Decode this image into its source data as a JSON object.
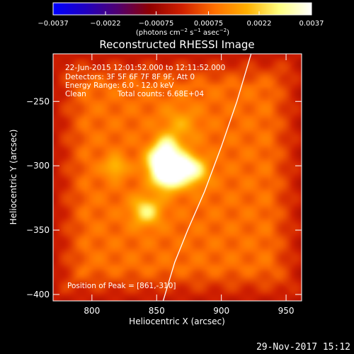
{
  "chart_data": {
    "type": "heatmap",
    "title": "Reconstructed RHESSI Image",
    "xlabel": "Heliocentric X (arcsec)",
    "ylabel": "Heliocentric Y (arcsec)",
    "xlim": [
      770,
      962
    ],
    "ylim": [
      -405,
      -213
    ],
    "x_ticks": [
      800,
      850,
      900,
      950
    ],
    "x_tick_labels": [
      "800",
      "850",
      "900",
      "950"
    ],
    "y_ticks": [
      -250,
      -300,
      -350,
      -400
    ],
    "y_tick_labels": [
      "−250",
      "−300",
      "−350",
      "−400"
    ],
    "colorbar": {
      "range": [
        -0.0037,
        0.0037
      ],
      "ticks": [
        -0.0037,
        -0.0022,
        -0.00075,
        0.00075,
        0.0022,
        0.0037
      ],
      "tick_labels": [
        "−0.0037",
        "−0.0022",
        "−0.00075",
        "0.00075",
        "0.0022",
        "0.0037"
      ],
      "label_main": "(photons cm",
      "label_sup1": "−2",
      "label_mid": " s",
      "label_sup2": "−1",
      "label_end": " asec",
      "label_sup3": "−2",
      "label_close": ")",
      "colors": [
        "#0000ff",
        "#2000c0",
        "#500070",
        "#900000",
        "#d02000",
        "#ff7000",
        "#ffb000",
        "#ffff80",
        "#ffffff"
      ]
    },
    "sources": [
      {
        "x": 859,
        "y": -307,
        "sigma": 8,
        "amp": 0.0037
      },
      {
        "x": 858,
        "y": -287,
        "sigma": 7,
        "amp": 0.0024
      },
      {
        "x": 851,
        "y": -297,
        "sigma": 7,
        "amp": 0.0022
      },
      {
        "x": 878,
        "y": -304,
        "sigma": 8,
        "amp": 0.0021
      },
      {
        "x": 870,
        "y": -298,
        "sigma": 6,
        "amp": 0.0015
      },
      {
        "x": 842,
        "y": -335,
        "sigma": 8,
        "amp": 0.0018
      },
      {
        "x": 818,
        "y": -301,
        "sigma": 6,
        "amp": 0.0012
      },
      {
        "x": 868,
        "y": -268,
        "sigma": 10,
        "amp": 0.0008
      }
    ],
    "background_level": 0.0009,
    "limb_curve": {
      "x": [
        923,
        912,
        900,
        887,
        874,
        864,
        855
      ],
      "y": [
        -213,
        -250,
        -285,
        -320,
        -350,
        -375,
        -405
      ]
    }
  },
  "info": {
    "line1": "22-Jun-2015 12:01:52.000 to 12:11:52.000",
    "line2": "Detectors: 3F 5F 6F 7F 8F 9F, Att 0",
    "line3": "Energy Range: 6.0 - 12.0 keV",
    "line4_a": "Clean",
    "line4_b": "Total counts: 6.68E+04"
  },
  "peak_label": "Position of Peak = [861,-310]",
  "timestamp": "29-Nov-2017 15:12"
}
